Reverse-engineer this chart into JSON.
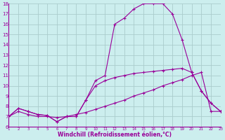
{
  "xlabel": "Windchill (Refroidissement éolien,°C)",
  "bg_color": "#cceeee",
  "grid_color": "#aacccc",
  "line_color": "#990099",
  "x_hours": [
    1,
    2,
    3,
    4,
    5,
    6,
    7,
    8,
    9,
    10,
    11,
    12,
    13,
    14,
    15,
    16,
    17,
    18,
    19,
    20,
    21,
    22,
    23
  ],
  "series1_y": [
    7.0,
    7.8,
    7.5,
    7.2,
    7.1,
    6.5,
    7.0,
    7.0,
    8.6,
    10.5,
    11.0,
    16.0,
    16.6,
    17.5,
    18.0,
    18.0,
    18.0,
    17.0,
    14.5,
    11.3,
    9.5,
    8.3,
    7.5
  ],
  "series2_y": [
    7.0,
    7.5,
    7.2,
    7.0,
    7.0,
    6.9,
    7.0,
    7.2,
    7.4,
    7.7,
    8.0,
    8.3,
    8.6,
    9.0,
    9.3,
    9.6,
    10.0,
    10.3,
    10.6,
    11.0,
    11.3,
    7.5,
    7.5
  ],
  "series3_y": [
    7.0,
    7.8,
    7.5,
    7.2,
    7.1,
    6.5,
    7.0,
    7.0,
    8.6,
    10.0,
    10.5,
    10.8,
    11.0,
    11.2,
    11.3,
    11.4,
    11.5,
    11.6,
    11.7,
    11.3,
    9.5,
    8.3,
    7.5
  ],
  "ylim": [
    6,
    18
  ],
  "yticks": [
    6,
    7,
    8,
    9,
    10,
    11,
    12,
    13,
    14,
    15,
    16,
    17,
    18
  ],
  "xlim": [
    1,
    23
  ]
}
